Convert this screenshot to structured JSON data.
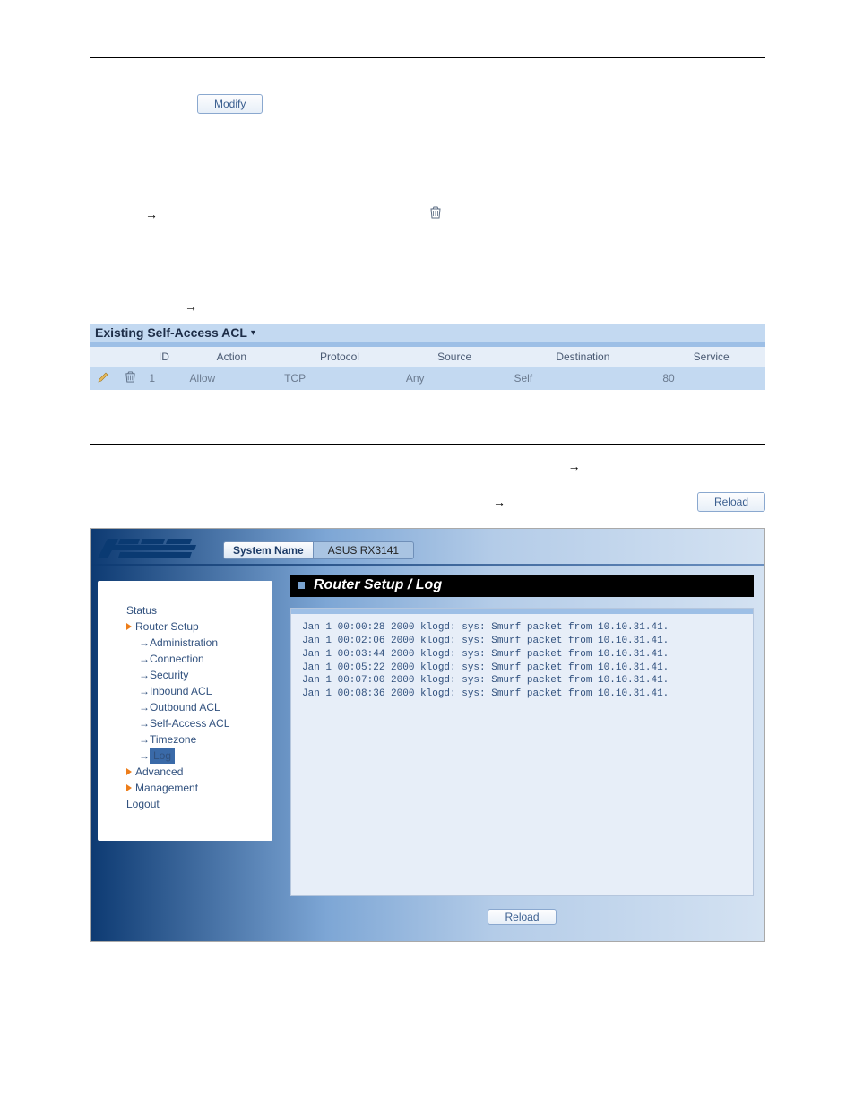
{
  "text": {
    "btn_modify": "Modify",
    "arrow": "→",
    "acl_title": "Existing Self-Access ACL",
    "btn_reload": "Reload",
    "page_title": "Router Setup / Log"
  },
  "acl_table": {
    "columns": [
      "",
      "",
      "ID",
      "Action",
      "Protocol",
      "Source",
      "Destination",
      "Service"
    ],
    "rows": [
      {
        "edit": true,
        "del": true,
        "cells": [
          "1",
          "Allow",
          "TCP",
          "Any",
          "Self",
          "80"
        ]
      }
    ],
    "header_bg": "#e6eef8",
    "row_bg": "#c3d9f1",
    "col_widths": [
      "4%",
      "4%",
      "6%",
      "14%",
      "18%",
      "16%",
      "22%",
      "16%"
    ]
  },
  "router": {
    "system_label": "System Name",
    "system_value": "ASUS RX3141",
    "sidebar": {
      "status": "Status",
      "router_setup": "Router Setup",
      "subs": [
        "Administration",
        "Connection",
        "Security",
        "Inbound ACL",
        "Outbound ACL",
        "Self-Access ACL",
        "Timezone"
      ],
      "active": "Log",
      "advanced": "Advanced",
      "management": "Management",
      "logout": "Logout"
    },
    "log_lines": [
      "Jan 1 00:00:28 2000 klogd: sys: Smurf packet from 10.10.31.41.",
      "Jan 1 00:02:06 2000 klogd: sys: Smurf packet from 10.10.31.41.",
      "Jan 1 00:03:44 2000 klogd: sys: Smurf packet from 10.10.31.41.",
      "Jan 1 00:05:22 2000 klogd: sys: Smurf packet from 10.10.31.41.",
      "Jan 1 00:07:00 2000 klogd: sys: Smurf packet from 10.10.31.41.",
      "Jan 1 00:08:36 2000 klogd: sys: Smurf packet from 10.10.31.41."
    ]
  },
  "colors": {
    "panel_bg": "#c3d9f1",
    "accent_bar": "#9dbfe6",
    "link": "#31517e",
    "btn_text": "#3b5f90",
    "header_black": "#000000"
  }
}
